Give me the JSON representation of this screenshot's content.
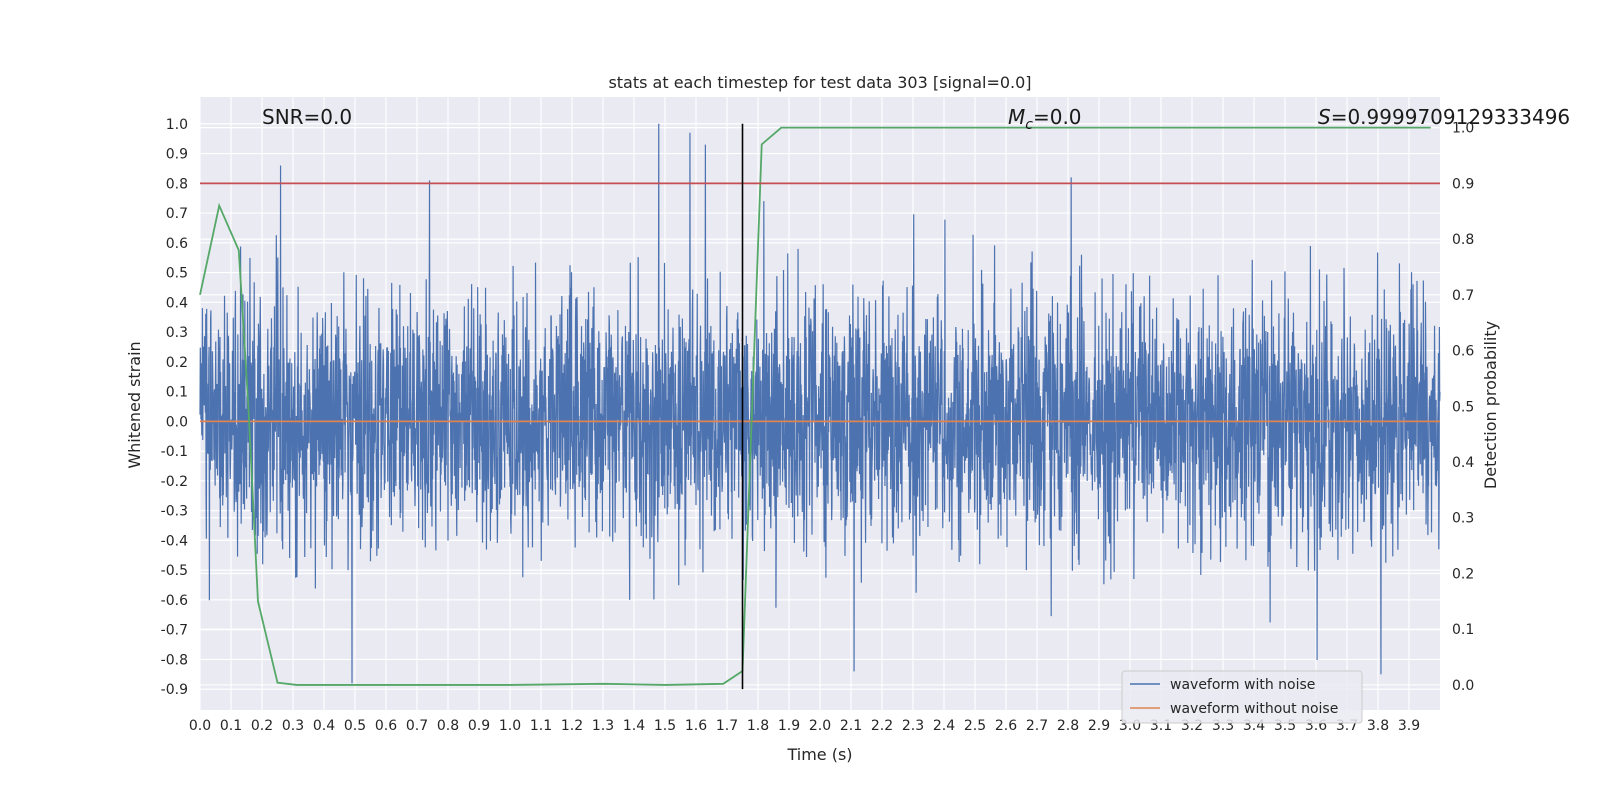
{
  "chart_data": {
    "type": "line",
    "title": "stats at each timestep for test data 303 [signal=0.0]",
    "xlabel": "Time (s)",
    "ylabel": "Whitened strain",
    "y2label": "Detection probability",
    "xlim": [
      0.0,
      4.0
    ],
    "ylim": [
      -0.97,
      1.09
    ],
    "y2lim": [
      -0.045,
      1.055
    ],
    "x_ticks": [
      0.0,
      0.1,
      0.2,
      0.3,
      0.4,
      0.5,
      0.6,
      0.7,
      0.8,
      0.9,
      1.0,
      1.1,
      1.2,
      1.3,
      1.4,
      1.5,
      1.6,
      1.7,
      1.8,
      1.9,
      2.0,
      2.1,
      2.2,
      2.3,
      2.4,
      2.5,
      2.6,
      2.7,
      2.8,
      2.9,
      3.0,
      3.1,
      3.2,
      3.3,
      3.4,
      3.5,
      3.6,
      3.7,
      3.8,
      3.9
    ],
    "x_tick_labels": [
      "0.0",
      "0.1",
      "0.2",
      "0.3",
      "0.4",
      "0.5",
      "0.6",
      "0.7",
      "0.8",
      "0.9",
      "1.0",
      "1.1",
      "1.2",
      "1.3",
      "1.4",
      "1.5",
      "1.6",
      "1.7",
      "1.8",
      "1.9",
      "2.0",
      "2.1",
      "2.2",
      "2.3",
      "2.4",
      "2.5",
      "2.6",
      "2.7",
      "2.8",
      "2.9",
      "3.0",
      "3.1",
      "3.2",
      "3.3",
      "3.4",
      "3.5",
      "3.6",
      "3.7",
      "3.8",
      "3.9"
    ],
    "y_ticks": [
      1.0,
      0.9,
      0.8,
      0.7,
      0.6,
      0.5,
      0.4,
      0.3,
      0.2,
      0.1,
      0.0,
      -0.1,
      -0.2,
      -0.3,
      -0.4,
      -0.5,
      -0.6,
      -0.7,
      -0.8,
      -0.9
    ],
    "y_tick_labels": [
      "1.0",
      "0.9",
      "0.8",
      "0.7",
      "0.6",
      "0.5",
      "0.4",
      "0.3",
      "0.2",
      "0.1",
      "0.0",
      "-0.1",
      "-0.2",
      "-0.3",
      "-0.4",
      "-0.5",
      "-0.6",
      "-0.7",
      "-0.8",
      "-0.9"
    ],
    "y2_ticks": [
      1.0,
      0.9,
      0.8,
      0.7,
      0.6,
      0.5,
      0.4,
      0.3,
      0.2,
      0.1,
      0.0
    ],
    "y2_tick_labels": [
      "1.0",
      "0.9",
      "0.8",
      "0.7",
      "0.6",
      "0.5",
      "0.4",
      "0.3",
      "0.2",
      "0.1",
      "0.0"
    ],
    "grid": true,
    "legend": {
      "placement": "lower-right",
      "entries": [
        {
          "label": "waveform with noise",
          "color": "#4c72b0"
        },
        {
          "label": "waveform without noise",
          "color": "#dd8452"
        }
      ]
    },
    "annotations": {
      "snr": "SNR=0.0",
      "mc_symbol": "M",
      "mc_subscript": "c",
      "mc_value": "=0.0",
      "s_symbol": "S",
      "s_value": "=0.9999709129333496"
    },
    "series": [
      {
        "name": "waveform with noise",
        "axis": "left",
        "color": "#4c72b0",
        "style": "noise",
        "duration": 4.0,
        "n_samples": 4096,
        "amplitude_range": [
          -0.88,
          1.0
        ],
        "notable_peaks": [
          {
            "x": 0.26,
            "y": 0.86
          },
          {
            "x": 0.74,
            "y": 0.81
          },
          {
            "x": 1.48,
            "y": 1.0
          },
          {
            "x": 1.58,
            "y": 0.97
          },
          {
            "x": 1.63,
            "y": 0.93
          },
          {
            "x": 2.81,
            "y": 0.82
          },
          {
            "x": 0.49,
            "y": -0.88
          },
          {
            "x": 2.11,
            "y": -0.84
          },
          {
            "x": 3.81,
            "y": -0.85
          }
        ]
      },
      {
        "name": "waveform without noise",
        "axis": "left",
        "color": "#dd8452",
        "x": [
          0.0,
          4.0
        ],
        "y": [
          0.0,
          0.0
        ]
      },
      {
        "name": "detection probability",
        "axis": "right",
        "color": "#55a868",
        "x": [
          0.0,
          0.062,
          0.125,
          0.156,
          0.187,
          0.25,
          0.312,
          0.5,
          1.0,
          1.3,
          1.5,
          1.688,
          1.75,
          1.812,
          1.875,
          2.5,
          3.0,
          3.5,
          3.97
        ],
        "y": [
          0.7,
          0.86,
          0.78,
          0.5,
          0.15,
          0.004,
          0.0,
          0.0,
          0.0,
          0.002,
          0.0,
          0.002,
          0.025,
          0.97,
          1.0,
          1.0,
          1.0,
          1.0,
          1.0
        ]
      },
      {
        "name": "threshold",
        "axis": "right",
        "color": "#c44e52",
        "x": [
          0.0,
          4.0
        ],
        "y": [
          0.9,
          0.9
        ]
      },
      {
        "name": "trigger time",
        "axis": "left",
        "color": "#000000",
        "style": "vline",
        "x": 1.75,
        "y_range": [
          -0.9,
          1.0
        ]
      }
    ]
  }
}
